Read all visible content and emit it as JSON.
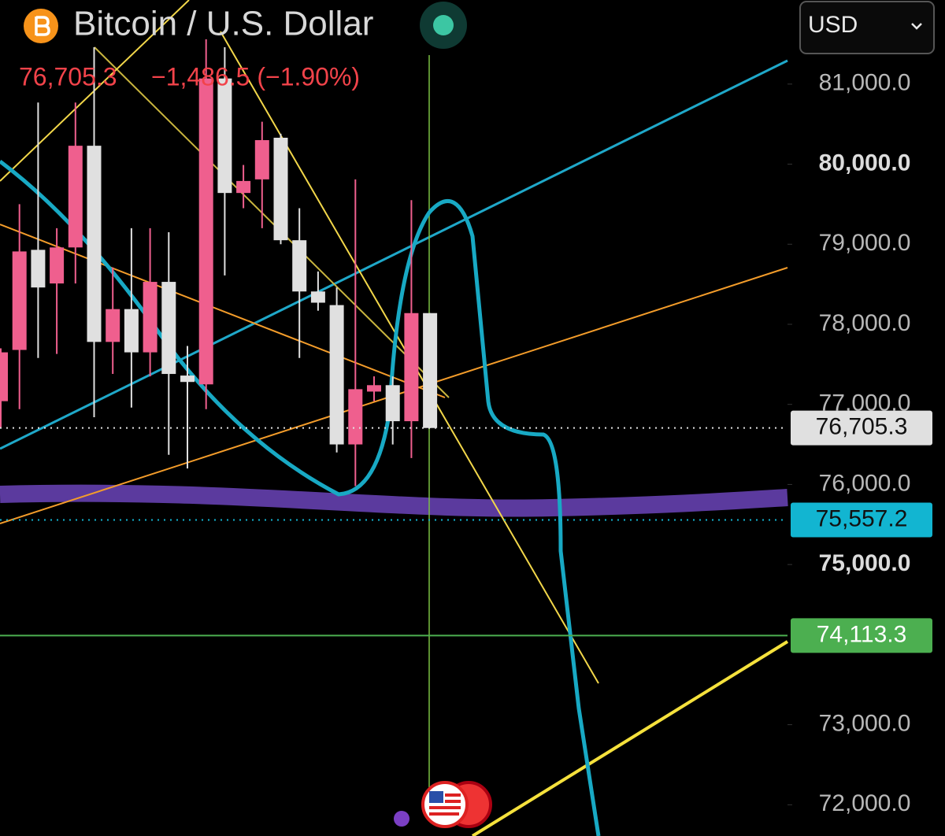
{
  "header": {
    "title": "Bitcoin / U.S. Dollar",
    "price": "76,705.3",
    "change": "−1,486.5 (−1.90%)",
    "currency": "USD"
  },
  "chart_data": {
    "type": "candlestick",
    "open": [
      77040,
      77680,
      78930,
      78510,
      78960,
      80230,
      77780,
      78190,
      77650,
      78530,
      77360,
      77250,
      81070,
      79640,
      79810,
      80330,
      79050,
      78410,
      78240,
      76500,
      77160,
      77240,
      76790,
      78140
    ],
    "high": [
      77700,
      79500,
      80770,
      79200,
      80770,
      81460,
      78710,
      79200,
      79200,
      79150,
      77730,
      81560,
      81460,
      79990,
      80530,
      80380,
      79450,
      78660,
      78460,
      79810,
      77350,
      77350,
      79550,
      78140
    ],
    "low": [
      76700,
      76940,
      77580,
      77630,
      78510,
      76840,
      77380,
      76960,
      77350,
      76370,
      76200,
      76940,
      78610,
      79450,
      79200,
      79000,
      77580,
      78170,
      76400,
      75980,
      77040,
      76500,
      76330,
      76705
    ],
    "close": [
      77650,
      78910,
      78460,
      78960,
      80230,
      77780,
      78190,
      77650,
      78530,
      77380,
      77280,
      81070,
      79640,
      79790,
      80300,
      79050,
      78410,
      78270,
      76500,
      77190,
      77240,
      76790,
      78140,
      76705
    ],
    "up_color": "#ef5f8e",
    "down_color": "#e0e0e0",
    "ylim": [
      71610,
      82050
    ],
    "yticks": [
      {
        "value": 72000,
        "label": "72,000.0"
      },
      {
        "value": 73000,
        "label": "73,000.0"
      },
      {
        "value": 75000,
        "label": "75,000.0",
        "bold": true
      },
      {
        "value": 76000,
        "label": "76,000.0"
      },
      {
        "value": 77000,
        "label": "77,000.0"
      },
      {
        "value": 78000,
        "label": "78,000.0"
      },
      {
        "value": 79000,
        "label": "79,000.0"
      },
      {
        "value": 80000,
        "label": "80,000.0",
        "bold": true
      },
      {
        "value": 81000,
        "label": "81,000.0"
      }
    ],
    "price_lines": [
      {
        "value": 76705.3,
        "label": "76,705.3",
        "color": "#e0e0e0",
        "style": "dotted"
      },
      {
        "value": 75557.2,
        "label": "75,557.2",
        "color": "#12b5d1",
        "style": "dotted"
      },
      {
        "value": 74113.3,
        "label": "74,113.3",
        "color": "#4caf50",
        "style": "solid"
      }
    ]
  }
}
